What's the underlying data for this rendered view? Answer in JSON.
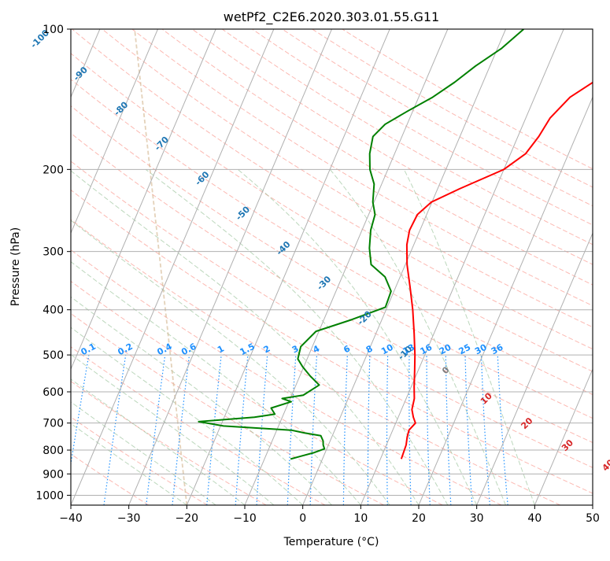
{
  "chart_data": {
    "type": "line",
    "title": "wetPf2_C2E6.2020.303.01.55.G11",
    "xlabel": "Temperature (°C)",
    "ylabel": "Pressure (hPa)",
    "xlim": [
      -40,
      50
    ],
    "ylim": [
      1050,
      100
    ],
    "y_scale": "log",
    "grid": true,
    "xticks": [
      "−40",
      "−30",
      "−20",
      "−10",
      "0",
      "10",
      "20",
      "30",
      "40",
      "50"
    ],
    "yticks": [
      "100",
      "200",
      "300",
      "400",
      "500",
      "600",
      "700",
      "800",
      "900",
      "1000"
    ],
    "skew": 35,
    "series": [
      {
        "role": "temperature",
        "color": "#ff0000",
        "x": [
          13.6,
          13.4,
          13.0,
          12.8,
          13.4,
          12.6,
          11.8,
          11.4,
          10.5,
          9.4,
          8.3,
          6.6,
          4.6,
          2.6,
          0.3,
          -1.2,
          -1.8,
          -1.6,
          -0.1,
          3.8,
          10.0,
          12.6,
          13.6,
          14.2,
          16.1,
          20.5,
          25.0,
          28.3
        ],
        "y": [
          836,
          780,
          750,
          725,
          700,
          680,
          655,
          620,
          585,
          540,
          500,
          450,
          400,
          360,
          320,
          290,
          270,
          250,
          235,
          220,
          200,
          185,
          170,
          155,
          140,
          125,
          110,
          100
        ]
      },
      {
        "role": "dewpoint",
        "color": "#008000",
        "x": [
          -5.5,
          -1.9,
          -0.4,
          -0.9,
          -1.2,
          -2.0,
          -5.0,
          -7.5,
          -19.5,
          -24.1,
          -14.8,
          -11.5,
          -12.6,
          -9.6,
          -11.4,
          -8.0,
          -6.0,
          -8.2,
          -10.2,
          -11.6,
          -12.0,
          -10.5,
          -5.2,
          -0.3,
          -0.5,
          -2.6,
          -5.9,
          -7.4,
          -8.5,
          -8.9,
          -10.2,
          -11.3,
          -13.1,
          -14.3,
          -15.0,
          -13.8,
          -10.9,
          -7.6,
          -4.9,
          -2.5,
          0.7,
          3.1
        ],
        "y": [
          836,
          810,
          795,
          780,
          765,
          745,
          735,
          725,
          710,
          695,
          680,
          670,
          650,
          630,
          620,
          610,
          580,
          555,
          530,
          510,
          480,
          445,
          420,
          395,
          365,
          340,
          320,
          295,
          270,
          250,
          235,
          215,
          200,
          185,
          170,
          160,
          150,
          140,
          130,
          120,
          110,
          100
        ]
      }
    ],
    "dry_adiabat_labels": [
      "-100",
      "-90",
      "-80",
      "-70",
      "-60",
      "-50",
      "-40",
      "-30",
      "-20",
      "-10",
      "0",
      "10",
      "20",
      "30",
      "40"
    ],
    "mixing_ratio_labels": [
      "0.1",
      "0.2",
      "0.4",
      "0.6",
      "1",
      "1.5",
      "2",
      "3",
      "4",
      "6",
      "8",
      "10",
      "13",
      "16",
      "20",
      "25",
      "30",
      "36"
    ],
    "colors": {
      "isotherm": "#b0b0b0",
      "isobar": "#b0b0b0",
      "dry_adiabat": "#fa8072",
      "moist_adiabat": "#8fbc8f",
      "mixing_ratio": "#1e90ff",
      "adiabat_label_cold": "#1f77b4",
      "adiabat_label_zero": "#7f7f7f",
      "adiabat_label_warm": "#d62728",
      "ice_boundary": "#d2b48c"
    }
  }
}
